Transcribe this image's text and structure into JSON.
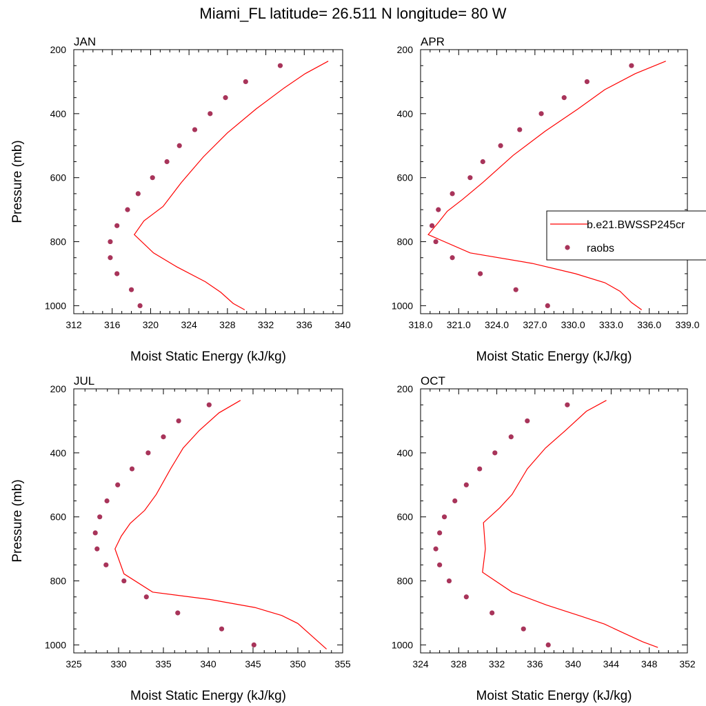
{
  "figure": {
    "title": "Miami_FL  latitude= 26.511 N longitude= 80 W"
  },
  "colors": {
    "model": "#ff0000",
    "obs": "#a8345a"
  },
  "chart_data": [
    {
      "type": "line",
      "panel": "JAN",
      "xlabel": "Moist Static Energy (kJ/kg)",
      "ylabel": "Pressure (mb)",
      "xlim": [
        312,
        340
      ],
      "ylim": [
        1025,
        200
      ],
      "x_ticks": [
        312,
        316,
        320,
        324,
        328,
        332,
        336,
        340
      ],
      "x_tick_labels": [
        "312",
        "316",
        "320",
        "324",
        "328",
        "332",
        "336",
        "340"
      ],
      "y_ticks": [
        200,
        400,
        600,
        800,
        1000
      ],
      "y_tick_labels": [
        "200",
        "400",
        "600",
        "800",
        "1000"
      ],
      "series": [
        {
          "name": "b.e21.BWSSP245cr",
          "kind": "line",
          "points": [
            [
              338.5,
              236
            ],
            [
              336.1,
              275
            ],
            [
              333.9,
              320
            ],
            [
              331.0,
              385
            ],
            [
              328.0,
              460
            ],
            [
              325.5,
              535
            ],
            [
              323.2,
              615
            ],
            [
              321.3,
              690
            ],
            [
              319.3,
              735
            ],
            [
              318.3,
              778
            ],
            [
              320.3,
              835
            ],
            [
              322.7,
              878
            ],
            [
              325.7,
              925
            ],
            [
              327.3,
              958
            ],
            [
              328.6,
              993
            ],
            [
              329.8,
              1013
            ]
          ]
        },
        {
          "name": "raobs",
          "kind": "markers",
          "points": [
            [
              333.5,
              250
            ],
            [
              329.9,
              300
            ],
            [
              327.8,
              350
            ],
            [
              326.2,
              400
            ],
            [
              324.6,
              450
            ],
            [
              323.0,
              500
            ],
            [
              321.7,
              550
            ],
            [
              320.2,
              600
            ],
            [
              318.7,
              650
            ],
            [
              317.6,
              700
            ],
            [
              316.5,
              750
            ],
            [
              315.8,
              800
            ],
            [
              315.8,
              850
            ],
            [
              316.5,
              900
            ],
            [
              318.0,
              950
            ],
            [
              318.9,
              1000
            ]
          ]
        }
      ]
    },
    {
      "type": "line",
      "panel": "APR",
      "xlabel": "Moist Static Energy (kJ/kg)",
      "ylabel": "",
      "xlim": [
        318,
        339
      ],
      "ylim": [
        1025,
        200
      ],
      "x_ticks": [
        318,
        321,
        324,
        327,
        330,
        333,
        336,
        339
      ],
      "x_tick_labels": [
        "318.0",
        "321.0",
        "324.0",
        "327.0",
        "330.0",
        "333.0",
        "336.0",
        "339.0"
      ],
      "y_ticks": [
        200,
        400,
        600,
        800,
        1000
      ],
      "y_tick_labels": [
        "200",
        "400",
        "600",
        "800",
        "1000"
      ],
      "series": [
        {
          "name": "b.e21.BWSSP245cr",
          "kind": "line",
          "points": [
            [
              337.3,
              236
            ],
            [
              334.9,
              275
            ],
            [
              332.5,
              325
            ],
            [
              330.4,
              385
            ],
            [
              327.8,
              455
            ],
            [
              325.3,
              530
            ],
            [
              322.9,
              615
            ],
            [
              321.3,
              668
            ],
            [
              320.1,
              705
            ],
            [
              319.4,
              740
            ],
            [
              318.6,
              778
            ],
            [
              321.9,
              835
            ],
            [
              326.8,
              868
            ],
            [
              330.2,
              900
            ],
            [
              332.5,
              928
            ],
            [
              333.7,
              955
            ],
            [
              334.6,
              990
            ],
            [
              335.4,
              1013
            ]
          ]
        },
        {
          "name": "raobs",
          "kind": "markers",
          "points": [
            [
              334.6,
              250
            ],
            [
              331.1,
              300
            ],
            [
              329.3,
              350
            ],
            [
              327.5,
              400
            ],
            [
              325.8,
              450
            ],
            [
              324.3,
              500
            ],
            [
              322.9,
              550
            ],
            [
              321.9,
              600
            ],
            [
              320.5,
              650
            ],
            [
              319.4,
              700
            ],
            [
              318.9,
              750
            ],
            [
              319.2,
              800
            ],
            [
              320.5,
              850
            ],
            [
              322.7,
              900
            ],
            [
              325.5,
              950
            ],
            [
              328.0,
              1000
            ]
          ]
        }
      ]
    },
    {
      "type": "line",
      "panel": "JUL",
      "xlabel": "Moist Static Energy (kJ/kg)",
      "ylabel": "Pressure (mb)",
      "xlim": [
        325,
        355
      ],
      "ylim": [
        1025,
        200
      ],
      "x_ticks": [
        325,
        330,
        335,
        340,
        345,
        350,
        355
      ],
      "x_tick_labels": [
        "325",
        "330",
        "335",
        "340",
        "345",
        "350",
        "355"
      ],
      "y_ticks": [
        200,
        400,
        600,
        800,
        1000
      ],
      "y_tick_labels": [
        "200",
        "400",
        "600",
        "800",
        "1000"
      ],
      "series": [
        {
          "name": "b.e21.BWSSP245cr",
          "kind": "line",
          "points": [
            [
              343.6,
              236
            ],
            [
              341.2,
              275
            ],
            [
              339.0,
              330
            ],
            [
              337.2,
              385
            ],
            [
              335.8,
              450
            ],
            [
              334.2,
              530
            ],
            [
              332.9,
              580
            ],
            [
              331.3,
              620
            ],
            [
              330.3,
              660
            ],
            [
              329.6,
              700
            ],
            [
              330.6,
              778
            ],
            [
              333.8,
              835
            ],
            [
              340.2,
              858
            ],
            [
              345.2,
              883
            ],
            [
              348.2,
              908
            ],
            [
              350.0,
              933
            ],
            [
              351.8,
              978
            ],
            [
              353.2,
              1013
            ]
          ]
        },
        {
          "name": "raobs",
          "kind": "markers",
          "points": [
            [
              340.1,
              250
            ],
            [
              336.7,
              300
            ],
            [
              335.0,
              350
            ],
            [
              333.3,
              400
            ],
            [
              331.5,
              450
            ],
            [
              329.9,
              500
            ],
            [
              328.7,
              550
            ],
            [
              327.9,
              600
            ],
            [
              327.4,
              650
            ],
            [
              327.6,
              700
            ],
            [
              328.6,
              750
            ],
            [
              330.6,
              800
            ],
            [
              333.1,
              850
            ],
            [
              336.6,
              900
            ],
            [
              341.5,
              950
            ],
            [
              345.1,
              1000
            ]
          ]
        }
      ]
    },
    {
      "type": "line",
      "panel": "OCT",
      "xlabel": "Moist Static Energy (kJ/kg)",
      "ylabel": "",
      "xlim": [
        324,
        352
      ],
      "ylim": [
        1025,
        200
      ],
      "x_ticks": [
        324,
        328,
        332,
        336,
        340,
        344,
        348,
        352
      ],
      "x_tick_labels": [
        "324",
        "328",
        "332",
        "336",
        "340",
        "344",
        "348",
        "352"
      ],
      "y_ticks": [
        200,
        400,
        600,
        800,
        1000
      ],
      "y_tick_labels": [
        "200",
        "400",
        "600",
        "800",
        "1000"
      ],
      "series": [
        {
          "name": "b.e21.BWSSP245cr",
          "kind": "line",
          "points": [
            [
              343.5,
              236
            ],
            [
              341.4,
              270
            ],
            [
              339.2,
              330
            ],
            [
              337.1,
              385
            ],
            [
              335.2,
              450
            ],
            [
              333.6,
              530
            ],
            [
              332.3,
              572
            ],
            [
              330.6,
              618
            ],
            [
              330.8,
              700
            ],
            [
              330.5,
              773
            ],
            [
              333.6,
              835
            ],
            [
              337.2,
              875
            ],
            [
              340.8,
              910
            ],
            [
              343.3,
              935
            ],
            [
              345.1,
              960
            ],
            [
              347.3,
              990
            ],
            [
              348.9,
              1008
            ]
          ]
        },
        {
          "name": "raobs",
          "kind": "markers",
          "points": [
            [
              339.4,
              250
            ],
            [
              335.2,
              300
            ],
            [
              333.5,
              350
            ],
            [
              331.8,
              400
            ],
            [
              330.2,
              450
            ],
            [
              328.8,
              500
            ],
            [
              327.6,
              550
            ],
            [
              326.5,
              600
            ],
            [
              326.0,
              650
            ],
            [
              325.6,
              700
            ],
            [
              326.0,
              750
            ],
            [
              327.0,
              800
            ],
            [
              328.8,
              850
            ],
            [
              331.5,
              900
            ],
            [
              334.8,
              950
            ],
            [
              337.4,
              1000
            ]
          ]
        }
      ]
    }
  ]
}
